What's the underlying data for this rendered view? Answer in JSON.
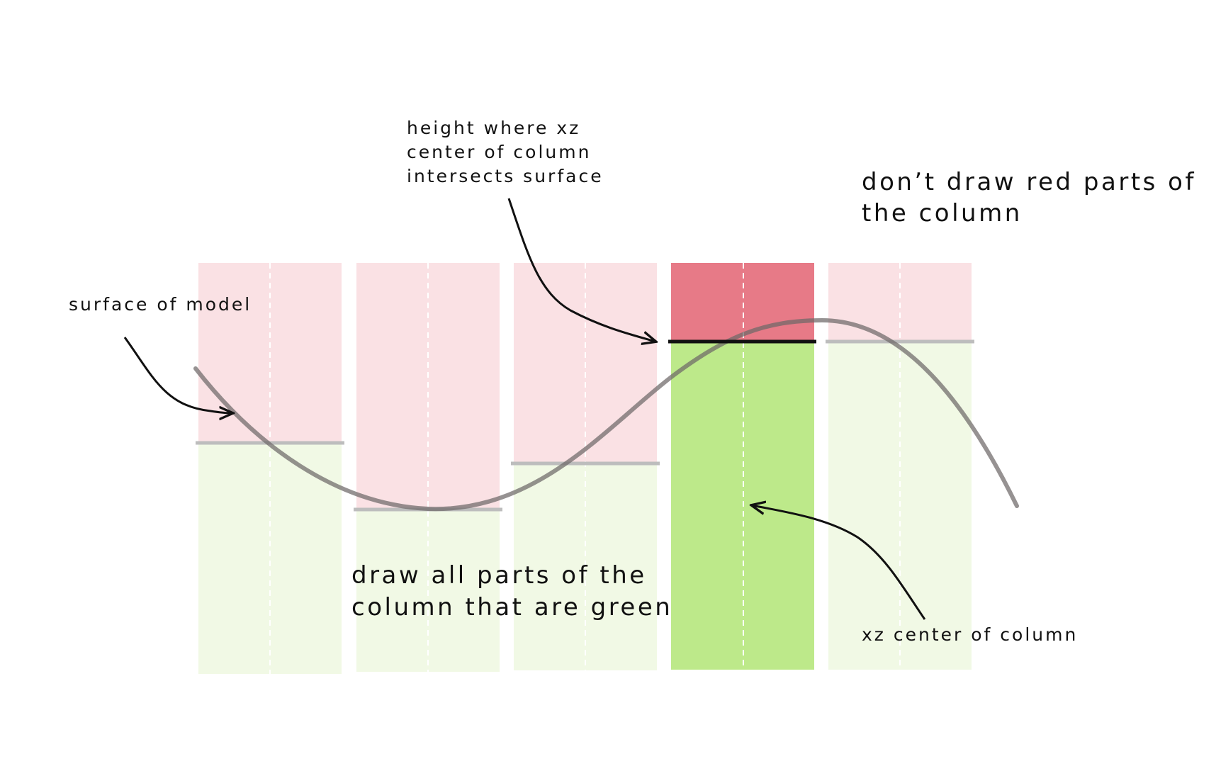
{
  "colors": {
    "hidden_light": "#fae1e4",
    "hidden_strong": "#e77a87",
    "visible_light": "#f1f9e5",
    "visible_strong": "#bde98a",
    "height_line_inactive": "#bdbdbd",
    "height_line_active": "#111111",
    "surface_curve": "#6e6868",
    "arrow": "#111111"
  },
  "labels": {
    "surface": "surface of model",
    "height_note": [
      "height where xz",
      "center of column",
      "intersects surface"
    ],
    "dont_draw": [
      "don’t draw red parts of",
      "the column"
    ],
    "draw_all": [
      "draw all parts of the",
      "column that are green"
    ],
    "xz_center": "xz center of column"
  },
  "columns": [
    {
      "id": 1,
      "highlighted": false
    },
    {
      "id": 2,
      "highlighted": false
    },
    {
      "id": 3,
      "highlighted": false
    },
    {
      "id": 4,
      "highlighted": true
    },
    {
      "id": 5,
      "highlighted": false
    }
  ]
}
